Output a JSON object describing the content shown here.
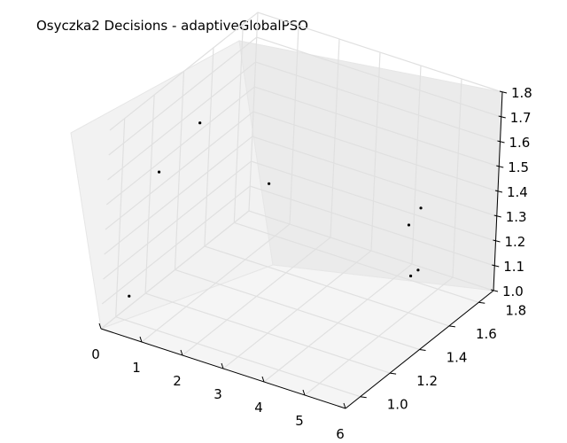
{
  "chart_data": {
    "type": "scatter",
    "projection": "3d",
    "title": "Osyczka2 Decisions - adaptiveGlobalPSO",
    "xlabel": "",
    "ylabel": "",
    "zlabel": "",
    "xlim": [
      0,
      6
    ],
    "ylim": [
      0.9,
      1.9
    ],
    "zlim": [
      1.0,
      1.8
    ],
    "xticks": [
      "0",
      "1",
      "2",
      "3",
      "4",
      "5",
      "6"
    ],
    "yticks": [
      "1.0",
      "1.2",
      "1.4",
      "1.6",
      "1.8"
    ],
    "zticks": [
      "1.0",
      "1.1",
      "1.2",
      "1.3",
      "1.4",
      "1.5",
      "1.6",
      "1.7",
      "1.8"
    ],
    "grid": true,
    "marker_color": "#000000",
    "points": [
      {
        "x": 0.1,
        "y": 1.5,
        "z": 1.55
      },
      {
        "x": 0.2,
        "y": 1.2,
        "z": 1.5
      },
      {
        "x": 0.8,
        "y": 1.8,
        "z": 1.2
      },
      {
        "x": 0.3,
        "y": 1.0,
        "z": 1.1
      },
      {
        "x": 4.5,
        "y": 1.8,
        "z": 1.3
      },
      {
        "x": 4.4,
        "y": 1.75,
        "z": 1.25
      },
      {
        "x": 4.5,
        "y": 1.75,
        "z": 1.05
      },
      {
        "x": 4.5,
        "y": 1.8,
        "z": 1.05
      }
    ]
  }
}
